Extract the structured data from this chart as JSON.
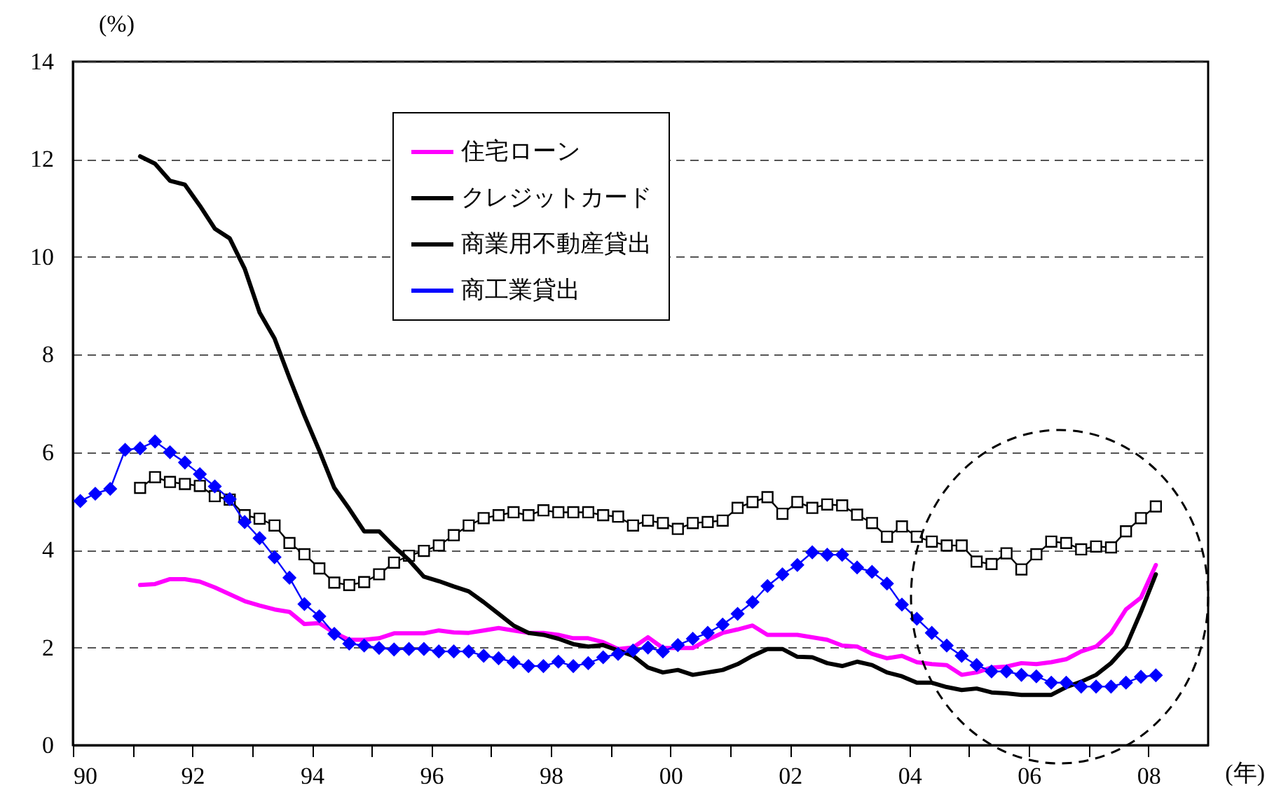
{
  "chart_data": {
    "type": "line",
    "ylabel": "(%)",
    "xlabel": "(年)",
    "x": [
      1990.125,
      1990.375,
      1990.625,
      1990.875,
      1991.125,
      1991.375,
      1991.625,
      1991.875,
      1992.125,
      1992.375,
      1992.625,
      1992.875,
      1993.125,
      1993.375,
      1993.625,
      1993.875,
      1994.125,
      1994.375,
      1994.625,
      1994.875,
      1995.125,
      1995.375,
      1995.625,
      1995.875,
      1996.125,
      1996.375,
      1996.625,
      1996.875,
      1997.125,
      1997.375,
      1997.625,
      1997.875,
      1998.125,
      1998.375,
      1998.625,
      1998.875,
      1999.125,
      1999.375,
      1999.625,
      1999.875,
      2000.125,
      2000.375,
      2000.625,
      2000.875,
      2001.125,
      2001.375,
      2001.625,
      2001.875,
      2002.125,
      2002.375,
      2002.625,
      2002.875,
      2003.125,
      2003.375,
      2003.625,
      2003.875,
      2004.125,
      2004.375,
      2004.625,
      2004.875,
      2005.125,
      2005.375,
      2005.625,
      2005.875,
      2006.125,
      2006.375,
      2006.625,
      2006.875,
      2007.125,
      2007.375,
      2007.625,
      2007.875,
      2008.125
    ],
    "series": [
      {
        "name": "住宅ローン",
        "color": "#ff00ff",
        "marker": "none",
        "values": [
          null,
          null,
          null,
          null,
          3.28,
          3.3,
          3.4,
          3.4,
          3.35,
          3.23,
          3.09,
          2.95,
          2.86,
          2.78,
          2.73,
          2.48,
          2.5,
          2.3,
          2.16,
          2.16,
          2.19,
          2.29,
          2.29,
          2.29,
          2.35,
          2.31,
          2.3,
          2.35,
          2.4,
          2.35,
          2.3,
          2.3,
          2.26,
          2.19,
          2.19,
          2.11,
          1.97,
          2.0,
          2.21,
          1.99,
          1.99,
          1.99,
          2.16,
          2.3,
          2.37,
          2.45,
          2.26,
          2.26,
          2.26,
          2.21,
          2.16,
          2.04,
          2.02,
          1.87,
          1.78,
          1.83,
          1.7,
          1.66,
          1.64,
          1.44,
          1.49,
          1.59,
          1.61,
          1.68,
          1.66,
          1.7,
          1.76,
          1.92,
          2.02,
          2.3,
          2.78,
          3.02,
          3.69
        ]
      },
      {
        "name": "クレジットカード",
        "color": "#000000",
        "marker": "square",
        "values": [
          null,
          null,
          null,
          null,
          5.27,
          5.49,
          5.39,
          5.35,
          5.31,
          5.1,
          5.03,
          4.71,
          4.64,
          4.5,
          4.14,
          3.91,
          3.62,
          3.33,
          3.28,
          3.34,
          3.5,
          3.74,
          3.88,
          3.98,
          4.09,
          4.3,
          4.5,
          4.65,
          4.71,
          4.77,
          4.71,
          4.81,
          4.77,
          4.77,
          4.77,
          4.71,
          4.68,
          4.5,
          4.6,
          4.55,
          4.43,
          4.55,
          4.57,
          4.6,
          4.86,
          4.98,
          5.08,
          4.74,
          4.98,
          4.86,
          4.93,
          4.91,
          4.72,
          4.55,
          4.27,
          4.48,
          4.27,
          4.17,
          4.09,
          4.09,
          3.76,
          3.71,
          3.93,
          3.6,
          3.91,
          4.17,
          4.14,
          4.01,
          4.07,
          4.05,
          4.38,
          4.65,
          4.89
        ]
      },
      {
        "name": "商業用不動産貸出",
        "color": "#000000",
        "marker": "none",
        "values": [
          null,
          null,
          null,
          null,
          12.06,
          11.91,
          11.56,
          11.48,
          11.05,
          10.58,
          10.38,
          9.76,
          8.86,
          8.33,
          7.52,
          6.75,
          6.03,
          5.27,
          4.84,
          4.38,
          4.38,
          4.07,
          3.79,
          3.45,
          3.36,
          3.25,
          3.15,
          2.93,
          2.69,
          2.45,
          2.3,
          2.26,
          2.18,
          2.07,
          2.02,
          2.05,
          1.94,
          1.83,
          1.59,
          1.49,
          1.54,
          1.44,
          1.49,
          1.54,
          1.66,
          1.83,
          1.97,
          1.97,
          1.81,
          1.8,
          1.68,
          1.62,
          1.71,
          1.64,
          1.49,
          1.41,
          1.28,
          1.28,
          1.19,
          1.13,
          1.16,
          1.08,
          1.06,
          1.03,
          1.03,
          1.03,
          1.19,
          1.3,
          1.44,
          1.68,
          2.02,
          2.73,
          3.5
        ]
      },
      {
        "name": "商工業貸出",
        "color": "#0000ff",
        "marker": "diamond",
        "values": [
          5.0,
          5.15,
          5.25,
          6.05,
          6.08,
          6.22,
          6.0,
          5.79,
          5.55,
          5.3,
          5.04,
          4.57,
          4.24,
          3.85,
          3.43,
          2.89,
          2.64,
          2.28,
          2.08,
          2.04,
          1.99,
          1.96,
          1.97,
          1.97,
          1.92,
          1.92,
          1.92,
          1.83,
          1.78,
          1.7,
          1.62,
          1.62,
          1.71,
          1.62,
          1.68,
          1.8,
          1.87,
          1.94,
          2.0,
          1.92,
          2.05,
          2.18,
          2.3,
          2.47,
          2.69,
          2.93,
          3.26,
          3.5,
          3.69,
          3.95,
          3.9,
          3.9,
          3.64,
          3.55,
          3.31,
          2.88,
          2.59,
          2.3,
          2.04,
          1.83,
          1.64,
          1.51,
          1.51,
          1.44,
          1.41,
          1.28,
          1.28,
          1.2,
          1.2,
          1.2,
          1.28,
          1.4,
          1.43
        ]
      }
    ],
    "xlim": [
      1990,
      2009
    ],
    "xticks": [
      {
        "value": 1990,
        "label": "90"
      },
      {
        "value": 1991,
        "label": null
      },
      {
        "value": 1992,
        "label": "92"
      },
      {
        "value": 1993,
        "label": null
      },
      {
        "value": 1994,
        "label": "94"
      },
      {
        "value": 1995,
        "label": null
      },
      {
        "value": 1996,
        "label": "96"
      },
      {
        "value": 1997,
        "label": null
      },
      {
        "value": 1998,
        "label": "98"
      },
      {
        "value": 1999,
        "label": null
      },
      {
        "value": 2000,
        "label": "00"
      },
      {
        "value": 2001,
        "label": null
      },
      {
        "value": 2002,
        "label": "02"
      },
      {
        "value": 2003,
        "label": null
      },
      {
        "value": 2004,
        "label": "04"
      },
      {
        "value": 2005,
        "label": null
      },
      {
        "value": 2006,
        "label": "06"
      },
      {
        "value": 2007,
        "label": null
      },
      {
        "value": 2008,
        "label": "08"
      }
    ],
    "ylim": [
      0,
      14
    ],
    "yticks": [
      0,
      2,
      4,
      6,
      8,
      10,
      12,
      14
    ],
    "grid": "y",
    "legend": "top",
    "line_style": "solid"
  }
}
